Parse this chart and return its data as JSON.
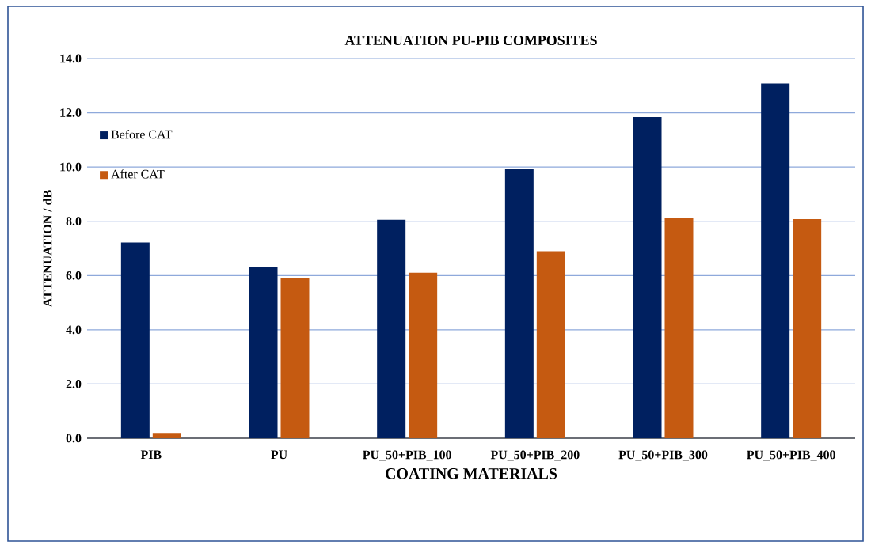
{
  "chart_data": {
    "type": "bar",
    "title": "ATTENUATION  PU-PIB COMPOSITES",
    "xlabel": "COATING MATERIALS",
    "ylabel": "ATTENUATION  / dB",
    "categories": [
      "PIB",
      "PU",
      "PU_50+PIB_100",
      "PU_50+PIB_200",
      "PU_50+PIB_300",
      "PU_50+PIB_400"
    ],
    "series": [
      {
        "name": "Before CAT",
        "color": "#002060",
        "values": [
          7.22,
          6.32,
          8.06,
          9.92,
          11.84,
          13.08
        ]
      },
      {
        "name": "After CAT",
        "color": "#c55a11",
        "values": [
          0.2,
          5.92,
          6.1,
          6.9,
          8.14,
          8.08
        ]
      }
    ],
    "ylim": [
      0,
      14
    ],
    "yticks": [
      {
        "value": 0,
        "label": "0.0"
      },
      {
        "value": 2,
        "label": "2.0"
      },
      {
        "value": 4,
        "label": "4.0"
      },
      {
        "value": 6,
        "label": "6.0"
      },
      {
        "value": 8,
        "label": "8.0"
      },
      {
        "value": 10,
        "label": "10.0"
      },
      {
        "value": 12,
        "label": "12.0"
      },
      {
        "value": 14,
        "label": "14.0"
      }
    ],
    "grid": "y",
    "legend": "top left"
  }
}
